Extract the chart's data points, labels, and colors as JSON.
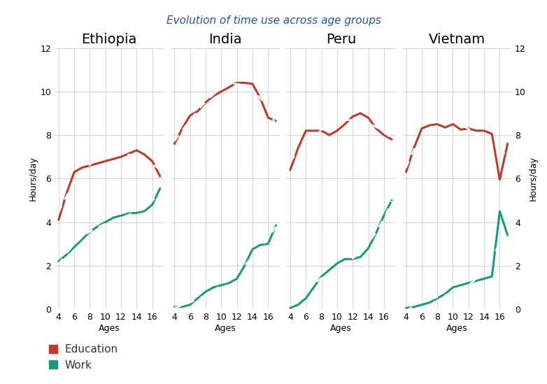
{
  "title": "Evolution of time use across age groups",
  "title_color": "#2255aa",
  "countries": [
    "Ethiopia",
    "India",
    "Peru",
    "Vietnam"
  ],
  "ages": [
    4,
    5,
    6,
    7,
    8,
    9,
    10,
    11,
    12,
    13,
    14,
    15,
    16,
    17
  ],
  "education": {
    "Ethiopia": [
      4.1,
      5.3,
      6.3,
      6.5,
      6.6,
      6.7,
      6.8,
      6.9,
      7.0,
      7.15,
      7.3,
      7.1,
      6.8,
      6.1
    ],
    "India": [
      7.6,
      8.3,
      8.9,
      9.1,
      9.5,
      9.8,
      10.0,
      10.2,
      10.4,
      10.4,
      10.35,
      9.7,
      8.8,
      8.65
    ],
    "Peru": [
      6.4,
      7.4,
      8.2,
      8.2,
      8.2,
      8.0,
      8.2,
      8.5,
      8.85,
      9.0,
      8.8,
      8.3,
      8.0,
      7.8
    ],
    "Vietnam": [
      6.3,
      7.4,
      8.3,
      8.45,
      8.5,
      8.35,
      8.5,
      8.25,
      8.3,
      8.2,
      8.2,
      8.05,
      5.95,
      7.6
    ]
  },
  "work": {
    "Ethiopia": [
      2.2,
      2.5,
      2.85,
      3.2,
      3.55,
      3.8,
      4.0,
      4.2,
      4.3,
      4.4,
      4.42,
      4.5,
      4.8,
      5.55
    ],
    "India": [
      0.1,
      0.1,
      0.2,
      0.5,
      0.8,
      1.0,
      1.1,
      1.2,
      1.4,
      2.0,
      2.75,
      2.95,
      3.0,
      3.85
    ],
    "Peru": [
      0.05,
      0.2,
      0.5,
      1.0,
      1.5,
      1.8,
      2.1,
      2.3,
      2.3,
      2.4,
      2.8,
      3.5,
      4.3,
      5.0
    ],
    "Vietnam": [
      0.05,
      0.1,
      0.2,
      0.3,
      0.5,
      0.7,
      1.0,
      1.1,
      1.2,
      1.3,
      1.4,
      1.5,
      4.5,
      3.4
    ]
  },
  "education_color": "#c0392b",
  "work_color": "#1a9980",
  "ylim": [
    0,
    12
  ],
  "yticks": [
    0,
    2,
    4,
    6,
    8,
    10,
    12
  ],
  "xticks": [
    4,
    6,
    8,
    10,
    12,
    14,
    16
  ],
  "xlabel": "Ages",
  "ylabel_left": "Hours/day",
  "ylabel_right": "Hours/day",
  "background_color": "#ffffff",
  "grid_color": "#cccccc",
  "country_title_fontsize": 14,
  "tick_fontsize": 9,
  "label_fontsize": 9,
  "legend_fontsize": 11
}
